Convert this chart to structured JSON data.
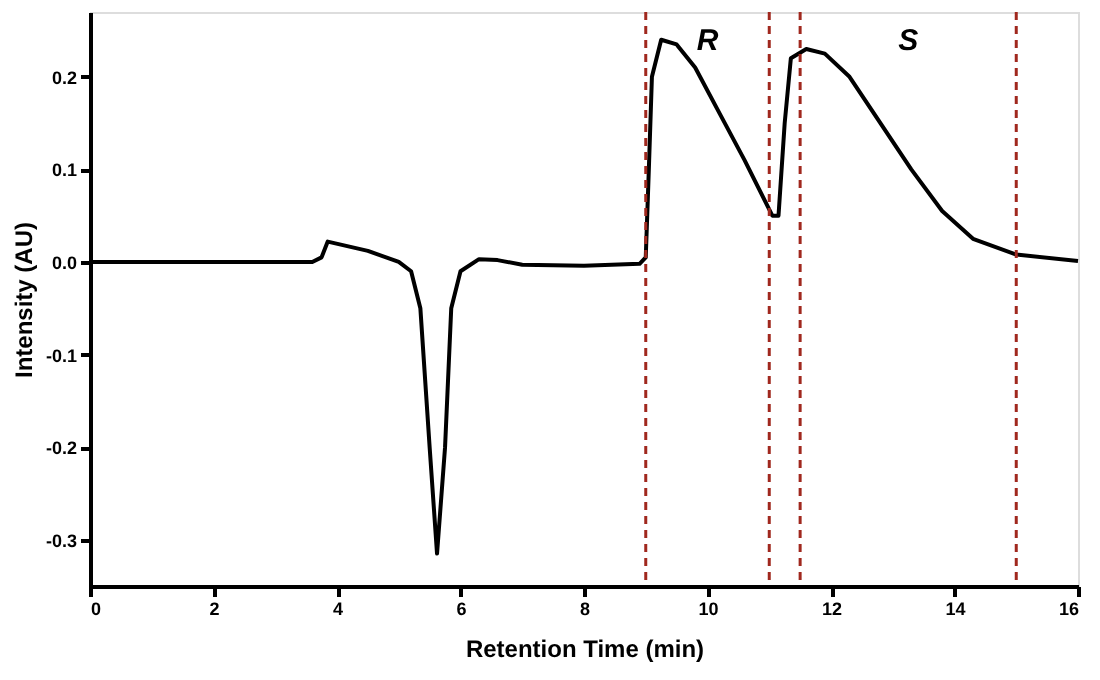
{
  "chart_data": {
    "type": "line",
    "xlabel": "Retention  Time (min)",
    "ylabel": "Intensity (AU)",
    "x": [
      0,
      3.6,
      3.75,
      3.85,
      4.5,
      5.0,
      5.2,
      5.35,
      5.5,
      5.62,
      5.75,
      5.85,
      6.0,
      6.3,
      6.6,
      7.0,
      8.0,
      8.9,
      9.0,
      9.05,
      9.1,
      9.25,
      9.5,
      9.8,
      10.2,
      10.6,
      10.9,
      11.05,
      11.15,
      11.25,
      11.35,
      11.6,
      11.9,
      12.3,
      12.8,
      13.3,
      13.8,
      14.3,
      15.0,
      16.0
    ],
    "series": [
      {
        "color": "#000000",
        "values": [
          0,
          0,
          0.005,
          0.022,
          0.012,
          0.0,
          -0.01,
          -0.05,
          -0.2,
          -0.315,
          -0.2,
          -0.05,
          -0.01,
          0.003,
          0.002,
          -0.003,
          -0.004,
          -0.002,
          0.005,
          0.1,
          0.2,
          0.24,
          0.235,
          0.21,
          0.16,
          0.11,
          0.07,
          0.05,
          0.05,
          0.15,
          0.22,
          0.23,
          0.225,
          0.2,
          0.15,
          0.1,
          0.055,
          0.025,
          0.008,
          0.001
        ]
      }
    ],
    "xlim": [
      0,
      16
    ],
    "xticks": [
      0,
      2,
      4,
      6,
      8,
      10,
      12,
      14,
      16
    ],
    "ylim": [
      -0.35,
      0.27
    ],
    "yticks": [
      {
        "value": -0.3,
        "label": "-0.3"
      },
      {
        "value": -0.2,
        "label": "-0.2"
      },
      {
        "value": -0.1,
        "label": "-0.1"
      },
      {
        "value": 0,
        "label": "0.0"
      },
      {
        "value": 0.1,
        "label": "0.1"
      },
      {
        "value": 0.2,
        "label": "0.2"
      }
    ],
    "ref_lines": [
      {
        "axis": "x",
        "value": 9,
        "color": "#a0281e",
        "line_style": "dashed"
      },
      {
        "axis": "x",
        "value": 11,
        "color": "#a0281e",
        "line_style": "dashed"
      },
      {
        "axis": "x",
        "value": 11.5,
        "color": "#a0281e",
        "line_style": "dashed"
      },
      {
        "axis": "x",
        "value": 15,
        "color": "#a0281e",
        "line_style": "dashed"
      }
    ],
    "annotations": [
      "R",
      "S"
    ],
    "grid": false,
    "marker": "none",
    "line_style": "solid"
  }
}
